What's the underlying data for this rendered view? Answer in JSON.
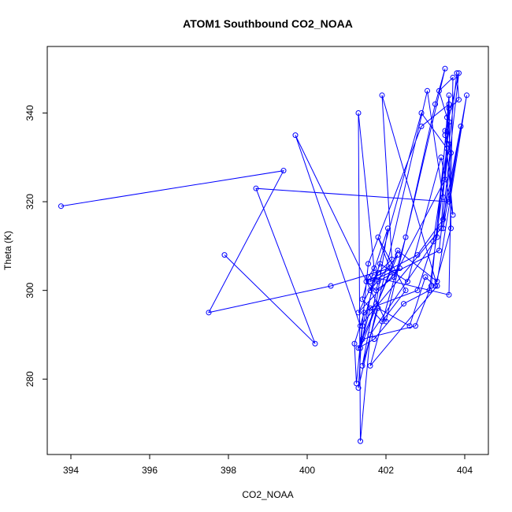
{
  "chart_data": {
    "type": "line",
    "title": "ATOM1 Southbound CO2_NOAA",
    "xlabel": "CO2_NOAA",
    "ylabel": "Theta (K)",
    "xlim": [
      393.4,
      404.6
    ],
    "ylim": [
      263,
      355
    ],
    "xticks": [
      394,
      396,
      398,
      400,
      402,
      404
    ],
    "yticks": [
      280,
      300,
      320,
      340
    ],
    "grid": false,
    "marker": "open-circle",
    "color": "#0000ff",
    "series": [
      {
        "x": [
          393.75,
          399.4,
          397.5,
          400.6,
          402.1,
          401.8,
          402.5,
          401.9,
          401.4,
          401.55,
          401.7,
          401.3,
          401.35,
          401.6,
          403.3,
          403.6,
          403.65,
          403.25,
          403.0,
          402.6,
          401.8,
          401.4,
          401.8,
          402.2,
          403.35,
          403.85,
          403.5,
          403.6,
          403.1,
          402.45,
          401.7,
          401.3,
          402.3,
          401.6,
          401.85,
          402.55,
          403.4,
          403.7,
          403.5,
          403.6,
          403.45,
          403.05,
          401.3,
          401.4,
          402.9,
          403.55,
          403.2,
          402.8,
          401.6,
          401.35,
          402.3,
          403.3,
          404.05,
          403.45,
          403.65,
          403.55,
          403.35,
          403.7,
          403.6,
          401.7,
          401.4,
          402.75,
          403.15,
          403.6,
          402.9,
          401.55,
          401.25,
          401.2,
          401.45,
          401.75,
          402.05,
          401.6,
          402.35,
          401.3,
          401.8,
          402.15,
          401.9,
          403.3,
          401.6,
          402.5,
          403.25,
          403.5,
          402.0,
          399.7,
          401.35,
          403.4,
          403.6,
          403.85,
          403.8,
          403.5,
          402.2,
          401.75,
          401.5,
          402.8,
          403.45,
          403.9,
          403.6,
          398.7,
          400.2,
          397.9
        ],
        "y": [
          319,
          327,
          295,
          301,
          305,
          312,
          300,
          293,
          298,
          303,
          305,
          340,
          266,
          290,
          312,
          344,
          314,
          301,
          303,
          292,
          296,
          283,
          302,
          304,
          309,
          349,
          335,
          333,
          300,
          297,
          289,
          287,
          308,
          300,
          306,
          302,
          330,
          317,
          336,
          338,
          321,
          345,
          278,
          292,
          340,
          332,
          311,
          300,
          296,
          287,
          309,
          302,
          344,
          314,
          331,
          339,
          345,
          348,
          299,
          303,
          289,
          292,
          301,
          342,
          337,
          306,
          279,
          288,
          295,
          297,
          314,
          302,
          305,
          295,
          304,
          307,
          344,
          301,
          283,
          312,
          342,
          350,
          293,
          335,
          292,
          314,
          341,
          343,
          349,
          325,
          303,
          300,
          302,
          308,
          316,
          337,
          320,
          323,
          288,
          308
        ]
      }
    ]
  }
}
